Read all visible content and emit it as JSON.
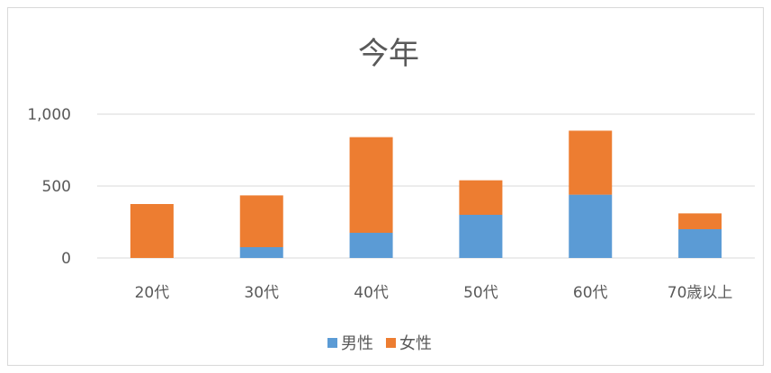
{
  "chart_data": {
    "type": "bar",
    "stacked": true,
    "title": "今年",
    "categories": [
      "20代",
      "30代",
      "40代",
      "50代",
      "60代",
      "70歳以上"
    ],
    "series": [
      {
        "name": "男性",
        "color": "#5b9bd5",
        "values": [
          0,
          75,
          175,
          300,
          440,
          200
        ]
      },
      {
        "name": "女性",
        "color": "#ed7d31",
        "values": [
          375,
          360,
          665,
          240,
          445,
          110
        ]
      }
    ],
    "ylim": [
      0,
      1000
    ],
    "yticks": [
      0,
      500,
      1000
    ],
    "ytick_labels": [
      "0",
      "500",
      "1,000"
    ],
    "grid": true,
    "legend_position": "bottom"
  }
}
